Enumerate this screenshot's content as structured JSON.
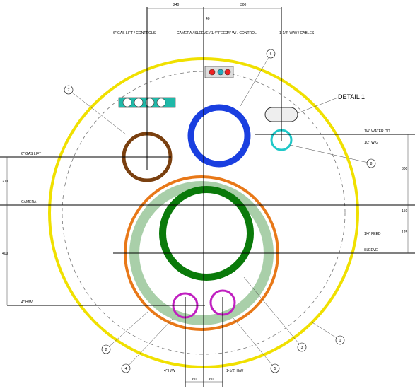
{
  "labels": {
    "top_dims": [
      "240",
      "300"
    ],
    "top_small_dim": "40",
    "callouts_top": [
      "6\" GAS LIFT / CONTROLS",
      "CAMERA / SLEEVE / 1/4\" FEED",
      "1/4\" W/ / CONTROL",
      "1-1/2\" W/W / CABLES"
    ],
    "detail": "DETAIL 1",
    "left": [
      "6\" GAS LIFT",
      "CAMERA",
      "4\" H/W"
    ],
    "left_dims": [
      "210",
      "400"
    ],
    "right": [
      "1/4\" WATER DO",
      "1/2\" W/G",
      "1/4\" FEED",
      "SLEEVE"
    ],
    "right_dims": [
      "300",
      "150",
      "125"
    ],
    "bottom": [
      "4\" H/W",
      "1-1/2\" H/W"
    ],
    "bottom_dims": [
      "60",
      "60"
    ],
    "balloons": [
      "7",
      "6",
      "8",
      "1",
      "2",
      "4",
      "5",
      "3"
    ]
  }
}
